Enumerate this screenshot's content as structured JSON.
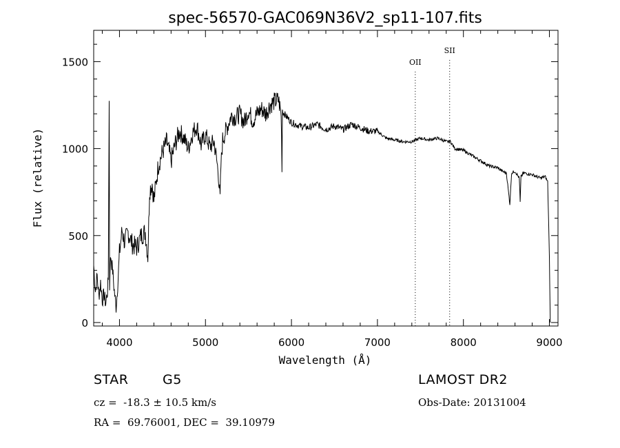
{
  "chart_data": {
    "type": "line",
    "title": "spec-56570-GAC069N36V2_sp11-107.fits",
    "xlabel": "Wavelength (Å)",
    "ylabel": "Flux (relative)",
    "xlim": [
      3700,
      9100
    ],
    "ylim": [
      -20,
      1680
    ],
    "xticks": [
      4000,
      5000,
      6000,
      7000,
      8000,
      9000
    ],
    "yticks": [
      0,
      500,
      1000,
      1500
    ],
    "grid": false,
    "line_color": "#000000",
    "series": [
      {
        "x": [
          3700,
          3720,
          3740,
          3760,
          3780,
          3800,
          3820,
          3840,
          3860,
          3870,
          3880,
          3885,
          3890,
          3900,
          3920,
          3940,
          3960,
          3980,
          4000,
          4030,
          4060,
          4100,
          4150,
          4200,
          4250,
          4300,
          4330,
          4350,
          4380,
          4400,
          4450,
          4500,
          4550,
          4600,
          4650,
          4700,
          4750,
          4800,
          4850,
          4900,
          4950,
          5000,
          5050,
          5100,
          5150,
          5170,
          5180,
          5200,
          5250,
          5300,
          5350,
          5400,
          5450,
          5500,
          5550,
          5600,
          5650,
          5700,
          5750,
          5800,
          5850,
          5880,
          5890,
          5895,
          5900,
          5950,
          6000,
          6100,
          6200,
          6300,
          6400,
          6500,
          6600,
          6700,
          6800,
          6900,
          7000,
          7100,
          7200,
          7300,
          7400,
          7500,
          7600,
          7700,
          7800,
          7850,
          7900,
          8000,
          8100,
          8200,
          8300,
          8400,
          8450,
          8500,
          8540,
          8560,
          8600,
          8650,
          8660,
          8670,
          8700,
          8800,
          8900,
          8950,
          8980,
          9000,
          9010
        ],
        "y": [
          330,
          180,
          270,
          150,
          230,
          130,
          160,
          110,
          180,
          250,
          1270,
          200,
          320,
          380,
          300,
          180,
          90,
          220,
          400,
          530,
          460,
          520,
          450,
          430,
          500,
          520,
          380,
          760,
          800,
          700,
          900,
          980,
          1040,
          930,
          1030,
          1100,
          1060,
          1000,
          1090,
          1130,
          1020,
          1080,
          1010,
          1040,
          860,
          710,
          900,
          1050,
          1120,
          1190,
          1180,
          1200,
          1150,
          1220,
          1160,
          1200,
          1230,
          1200,
          1250,
          1270,
          1280,
          1200,
          910,
          1230,
          1210,
          1180,
          1150,
          1130,
          1120,
          1140,
          1110,
          1130,
          1110,
          1140,
          1120,
          1100,
          1100,
          1060,
          1050,
          1040,
          1040,
          1060,
          1050,
          1060,
          1040,
          1040,
          1000,
          990,
          960,
          930,
          900,
          890,
          870,
          860,
          680,
          860,
          870,
          830,
          690,
          840,
          860,
          850,
          830,
          840,
          810,
          380,
          0
        ]
      }
    ],
    "annotations": [
      {
        "label": "OII",
        "x": 7440
      },
      {
        "label": "SII",
        "x": 7840
      }
    ]
  },
  "info": {
    "object_type": "STAR",
    "subclass": "G5",
    "survey": "LAMOST DR2",
    "redshift": "cz =  -18.3 ± 10.5 km/s",
    "obs_date": "Obs-Date: 20131004",
    "coords": "RA =  69.76001, DEC =  39.10979"
  }
}
